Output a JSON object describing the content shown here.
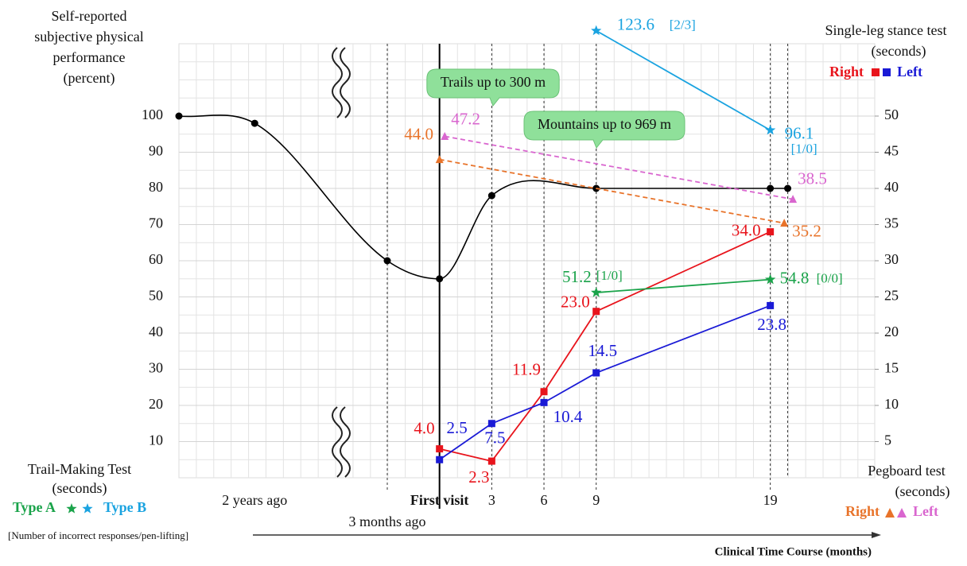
{
  "chart_data": {
    "type": "line",
    "y_label": [
      "Self-reported",
      "subjective physical",
      "performance",
      "(percent)"
    ],
    "y2_label": [
      "Single-leg stance test",
      "(seconds)"
    ],
    "trail_label": [
      "Trail-Making Test",
      "(seconds)"
    ],
    "pegboard_label": [
      "Pegboard test",
      "(seconds)"
    ],
    "trail_note": "[Number of incorrect responses/pen-lifting]",
    "x_label": "Clinical Time Course (months)",
    "annotations": [
      "Trails up to 300 m",
      "Mountains up to 969 m"
    ],
    "xlim": [
      -36,
      25
    ],
    "x_break": -3,
    "xticks": [
      {
        "value": -24,
        "label": "2 years ago"
      },
      {
        "value": -3,
        "label": "3 months ago"
      },
      {
        "value": 0,
        "label": "First visit",
        "bold": true
      },
      3,
      6,
      9,
      19
    ],
    "ylim": [
      0,
      120
    ],
    "yticks": [
      10,
      20,
      30,
      40,
      50,
      60,
      70,
      80,
      90,
      100
    ],
    "y2lim": [
      0,
      60
    ],
    "y2ticks": [
      5,
      10,
      15,
      20,
      25,
      30,
      35,
      40,
      45,
      50
    ],
    "grid": true,
    "series": [
      {
        "color": "#000000",
        "marker": "circle",
        "curve": "smooth",
        "x": [
          -36,
          -24,
          -3,
          0,
          3,
          9,
          19,
          20
        ],
        "values": [
          100,
          98,
          60,
          55,
          78,
          80,
          80,
          80
        ]
      },
      {
        "name": "Right",
        "group": "stance",
        "color": "#e8141c",
        "marker": "square",
        "axis": "y2",
        "x": [
          0,
          3,
          6,
          9,
          19
        ],
        "values": [
          4.0,
          2.3,
          11.9,
          23.0,
          34.0
        ],
        "value_labels": [
          "4.0",
          "2.3",
          "11.9",
          "23.0",
          "34.0"
        ]
      },
      {
        "name": "Left",
        "group": "stance",
        "color": "#1a1ad6",
        "marker": "square",
        "axis": "y2",
        "x": [
          0,
          3,
          6,
          9,
          19
        ],
        "values": [
          2.5,
          7.5,
          10.4,
          14.5,
          23.8
        ],
        "value_labels": [
          "2.5",
          "7.5",
          "10.4",
          "14.5",
          "23.8"
        ]
      },
      {
        "name": "Right",
        "group": "pegboard",
        "color": "#e8732a",
        "marker": "triangle",
        "dash": true,
        "axis": "y2",
        "x": [
          0,
          19.8
        ],
        "values": [
          44.0,
          35.2
        ],
        "value_labels": [
          "44.0",
          "35.2"
        ]
      },
      {
        "name": "Left",
        "group": "pegboard",
        "color": "#d966cf",
        "marker": "triangle",
        "dash": true,
        "axis": "y2",
        "x": [
          0.3,
          20.3
        ],
        "values": [
          47.2,
          38.5
        ],
        "value_labels": [
          "47.2",
          "38.5"
        ]
      },
      {
        "name": "Type A",
        "group": "trail",
        "color": "#1aa34a",
        "marker": "star",
        "x": [
          9,
          19
        ],
        "values": [
          51.2,
          54.8
        ],
        "value_labels": [
          "51.2",
          "54.8"
        ],
        "notes": [
          "[1/0]",
          "[0/0]"
        ]
      },
      {
        "name": "Type B",
        "group": "trail",
        "color": "#1aa3e0",
        "marker": "star",
        "x": [
          9,
          19
        ],
        "values": [
          123.6,
          96.1
        ],
        "value_labels": [
          "123.6",
          "96.1"
        ],
        "notes": [
          "[2/3]",
          "[1/0]"
        ]
      }
    ]
  }
}
